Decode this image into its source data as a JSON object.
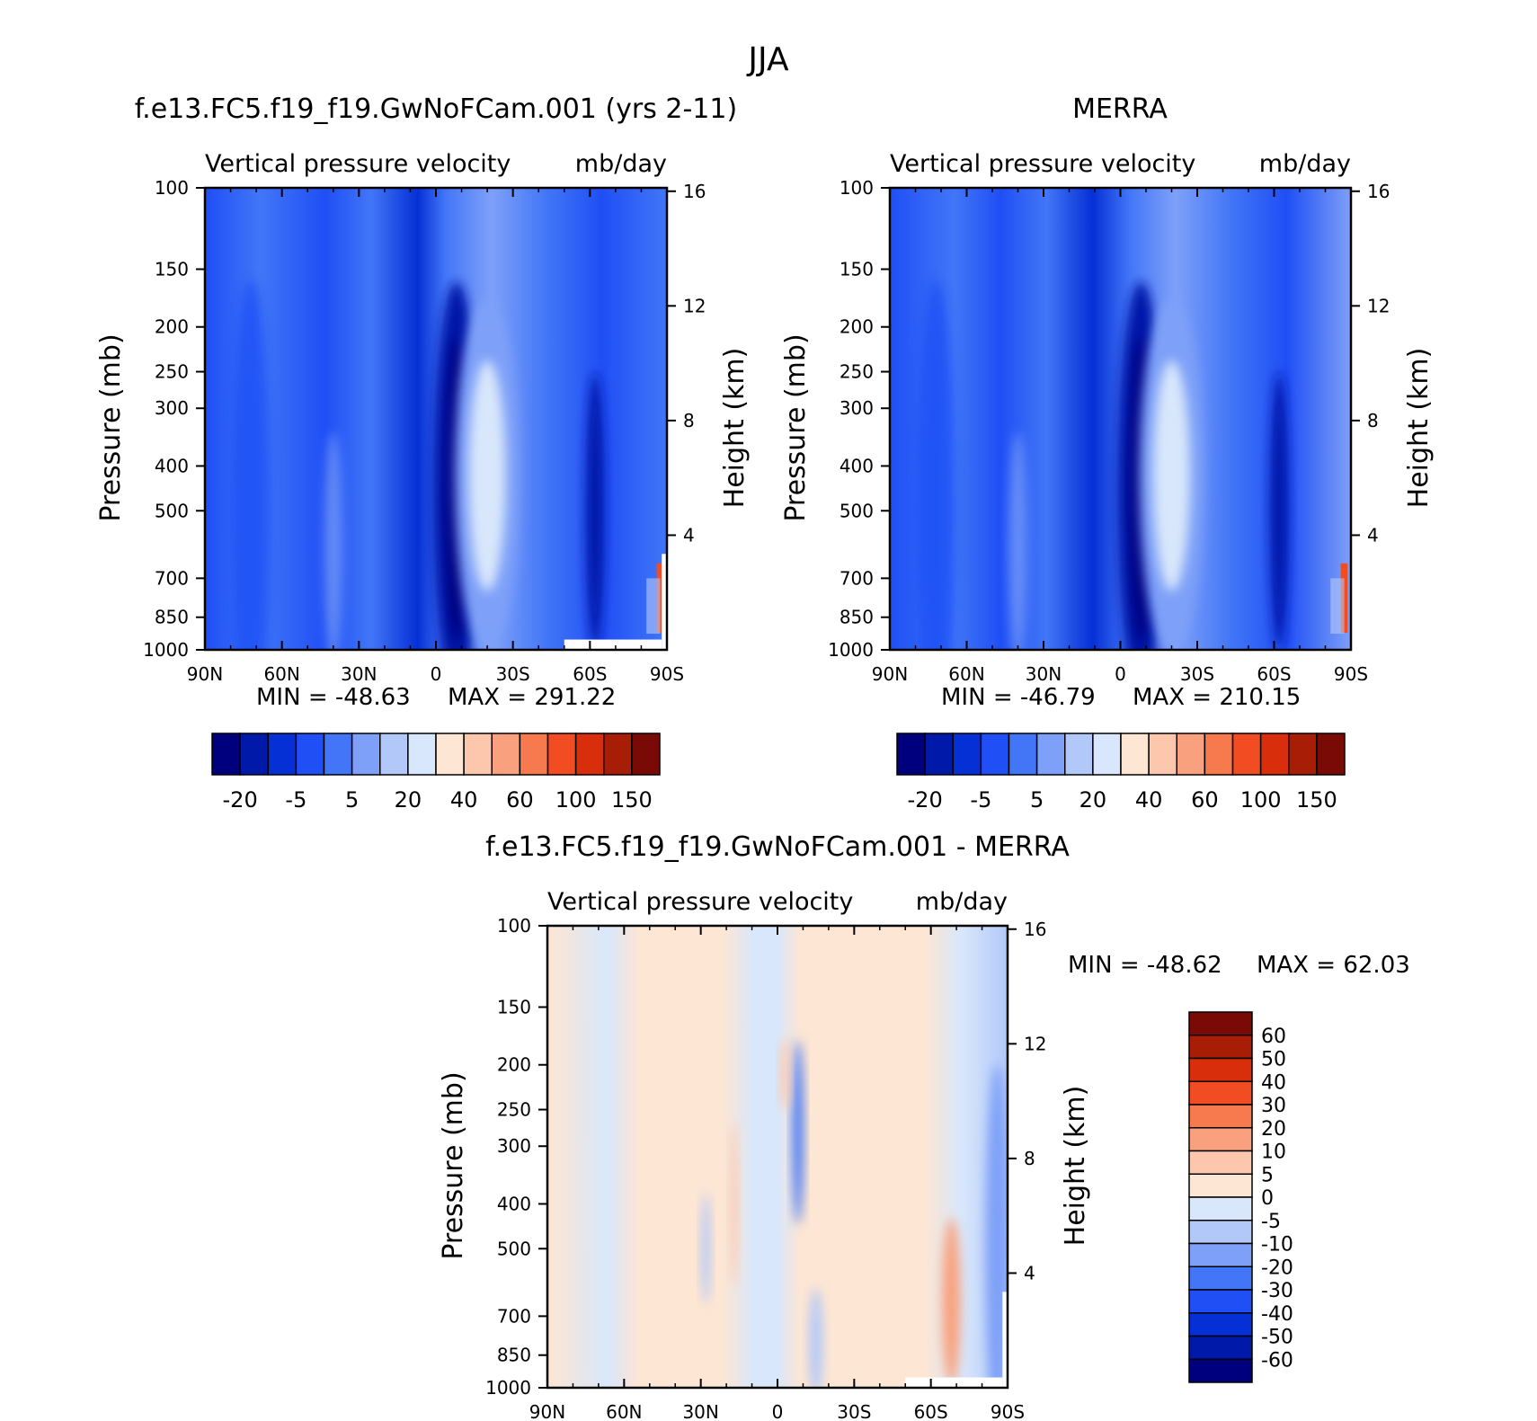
{
  "figure_title": "JJA",
  "colors": {
    "seasonal": [
      "#00007f",
      "#0019a8",
      "#0530d6",
      "#1f4ff5",
      "#4276f7",
      "#7ea0f8",
      "#b2c8f9",
      "#d8e7fb",
      "#fde6d3",
      "#fcc7ad",
      "#f9a17e",
      "#f67a4d",
      "#f14c22",
      "#d82e0c",
      "#a81d06",
      "#7a0a06"
    ],
    "diff": [
      "#00007f",
      "#0019a8",
      "#0530d6",
      "#1f4ff5",
      "#4276f7",
      "#7ea0f8",
      "#b2c8f9",
      "#d8e7fb",
      "#fde6d3",
      "#fcc7ad",
      "#f9a17e",
      "#f67a4d",
      "#f14c22",
      "#d82e0c",
      "#a81d06",
      "#7a0a06"
    ]
  },
  "chart_data": [
    {
      "type": "heatmap",
      "title": "f.e13.FC5.f19_f19.GwNoFCam.001 (yrs 2-11)",
      "subtitle_left": "Vertical pressure velocity",
      "subtitle_right": "mb/day",
      "ylabel": "Pressure (mb)",
      "y2label": "Height (km)",
      "x_ticks": [
        "90N",
        "60N",
        "30N",
        "0",
        "30S",
        "60S",
        "90S"
      ],
      "x_tick_values": [
        90,
        60,
        30,
        0,
        -30,
        -60,
        -90
      ],
      "y_ticks": [
        100,
        150,
        200,
        250,
        300,
        400,
        500,
        700,
        850,
        1000
      ],
      "y2_ticks": [
        4,
        8,
        12,
        16
      ],
      "ylim": [
        1000,
        100
      ],
      "xlim": [
        90,
        -90
      ],
      "min_label": "MIN = -48.63",
      "max_label": "MAX = 291.22",
      "min": -48.63,
      "max": 291.22,
      "colorbar_labels": [
        "-20",
        "-5",
        "5",
        "20",
        "40",
        "60",
        "100",
        "150"
      ],
      "features": [
        {
          "lat": -10,
          "center_p": 500,
          "width": 8,
          "depth": 1,
          "value": -40
        },
        {
          "lat": 20,
          "center_p": 400,
          "width": 12,
          "depth": 1,
          "value": 30
        },
        {
          "lat": -60,
          "center_p": 600,
          "width": 6,
          "depth": 1,
          "value": -35
        },
        {
          "lat": -85,
          "center_p": 800,
          "width": 3,
          "depth": 1,
          "value": 150
        }
      ]
    },
    {
      "type": "heatmap",
      "title": "MERRA",
      "subtitle_left": "Vertical pressure velocity",
      "subtitle_right": "mb/day",
      "ylabel": "Pressure (mb)",
      "y2label": "Height (km)",
      "x_ticks": [
        "90N",
        "60N",
        "30N",
        "0",
        "30S",
        "60S",
        "90S"
      ],
      "x_tick_values": [
        90,
        60,
        30,
        0,
        -30,
        -60,
        -90
      ],
      "y_ticks": [
        100,
        150,
        200,
        250,
        300,
        400,
        500,
        700,
        850,
        1000
      ],
      "y2_ticks": [
        4,
        8,
        12,
        16
      ],
      "ylim": [
        1000,
        100
      ],
      "xlim": [
        90,
        -90
      ],
      "min_label": "MIN = -46.79",
      "max_label": "MAX = 210.15",
      "min": -46.79,
      "max": 210.15,
      "colorbar_labels": [
        "-20",
        "-5",
        "5",
        "20",
        "40",
        "60",
        "100",
        "150"
      ]
    },
    {
      "type": "heatmap",
      "title": "f.e13.FC5.f19_f19.GwNoFCam.001 - MERRA",
      "subtitle_left": "Vertical pressure velocity",
      "subtitle_right": "mb/day",
      "ylabel": "Pressure (mb)",
      "y2label": "Height (km)",
      "x_ticks": [
        "90N",
        "60N",
        "30N",
        "0",
        "30S",
        "60S",
        "90S"
      ],
      "x_tick_values": [
        90,
        60,
        30,
        0,
        -30,
        -60,
        -90
      ],
      "y_ticks": [
        100,
        150,
        200,
        250,
        300,
        400,
        500,
        700,
        850,
        1000
      ],
      "y2_ticks": [
        4,
        8,
        12,
        16
      ],
      "ylim": [
        1000,
        100
      ],
      "xlim": [
        90,
        -90
      ],
      "min_label": "MIN = -48.62",
      "max_label": "MAX =  62.03",
      "min": -48.62,
      "max": 62.03,
      "colorbar_labels": [
        "60",
        "50",
        "40",
        "30",
        "20",
        "10",
        "5",
        "0",
        "-5",
        "-10",
        "-20",
        "-30",
        "-40",
        "-50",
        "-60"
      ]
    }
  ]
}
